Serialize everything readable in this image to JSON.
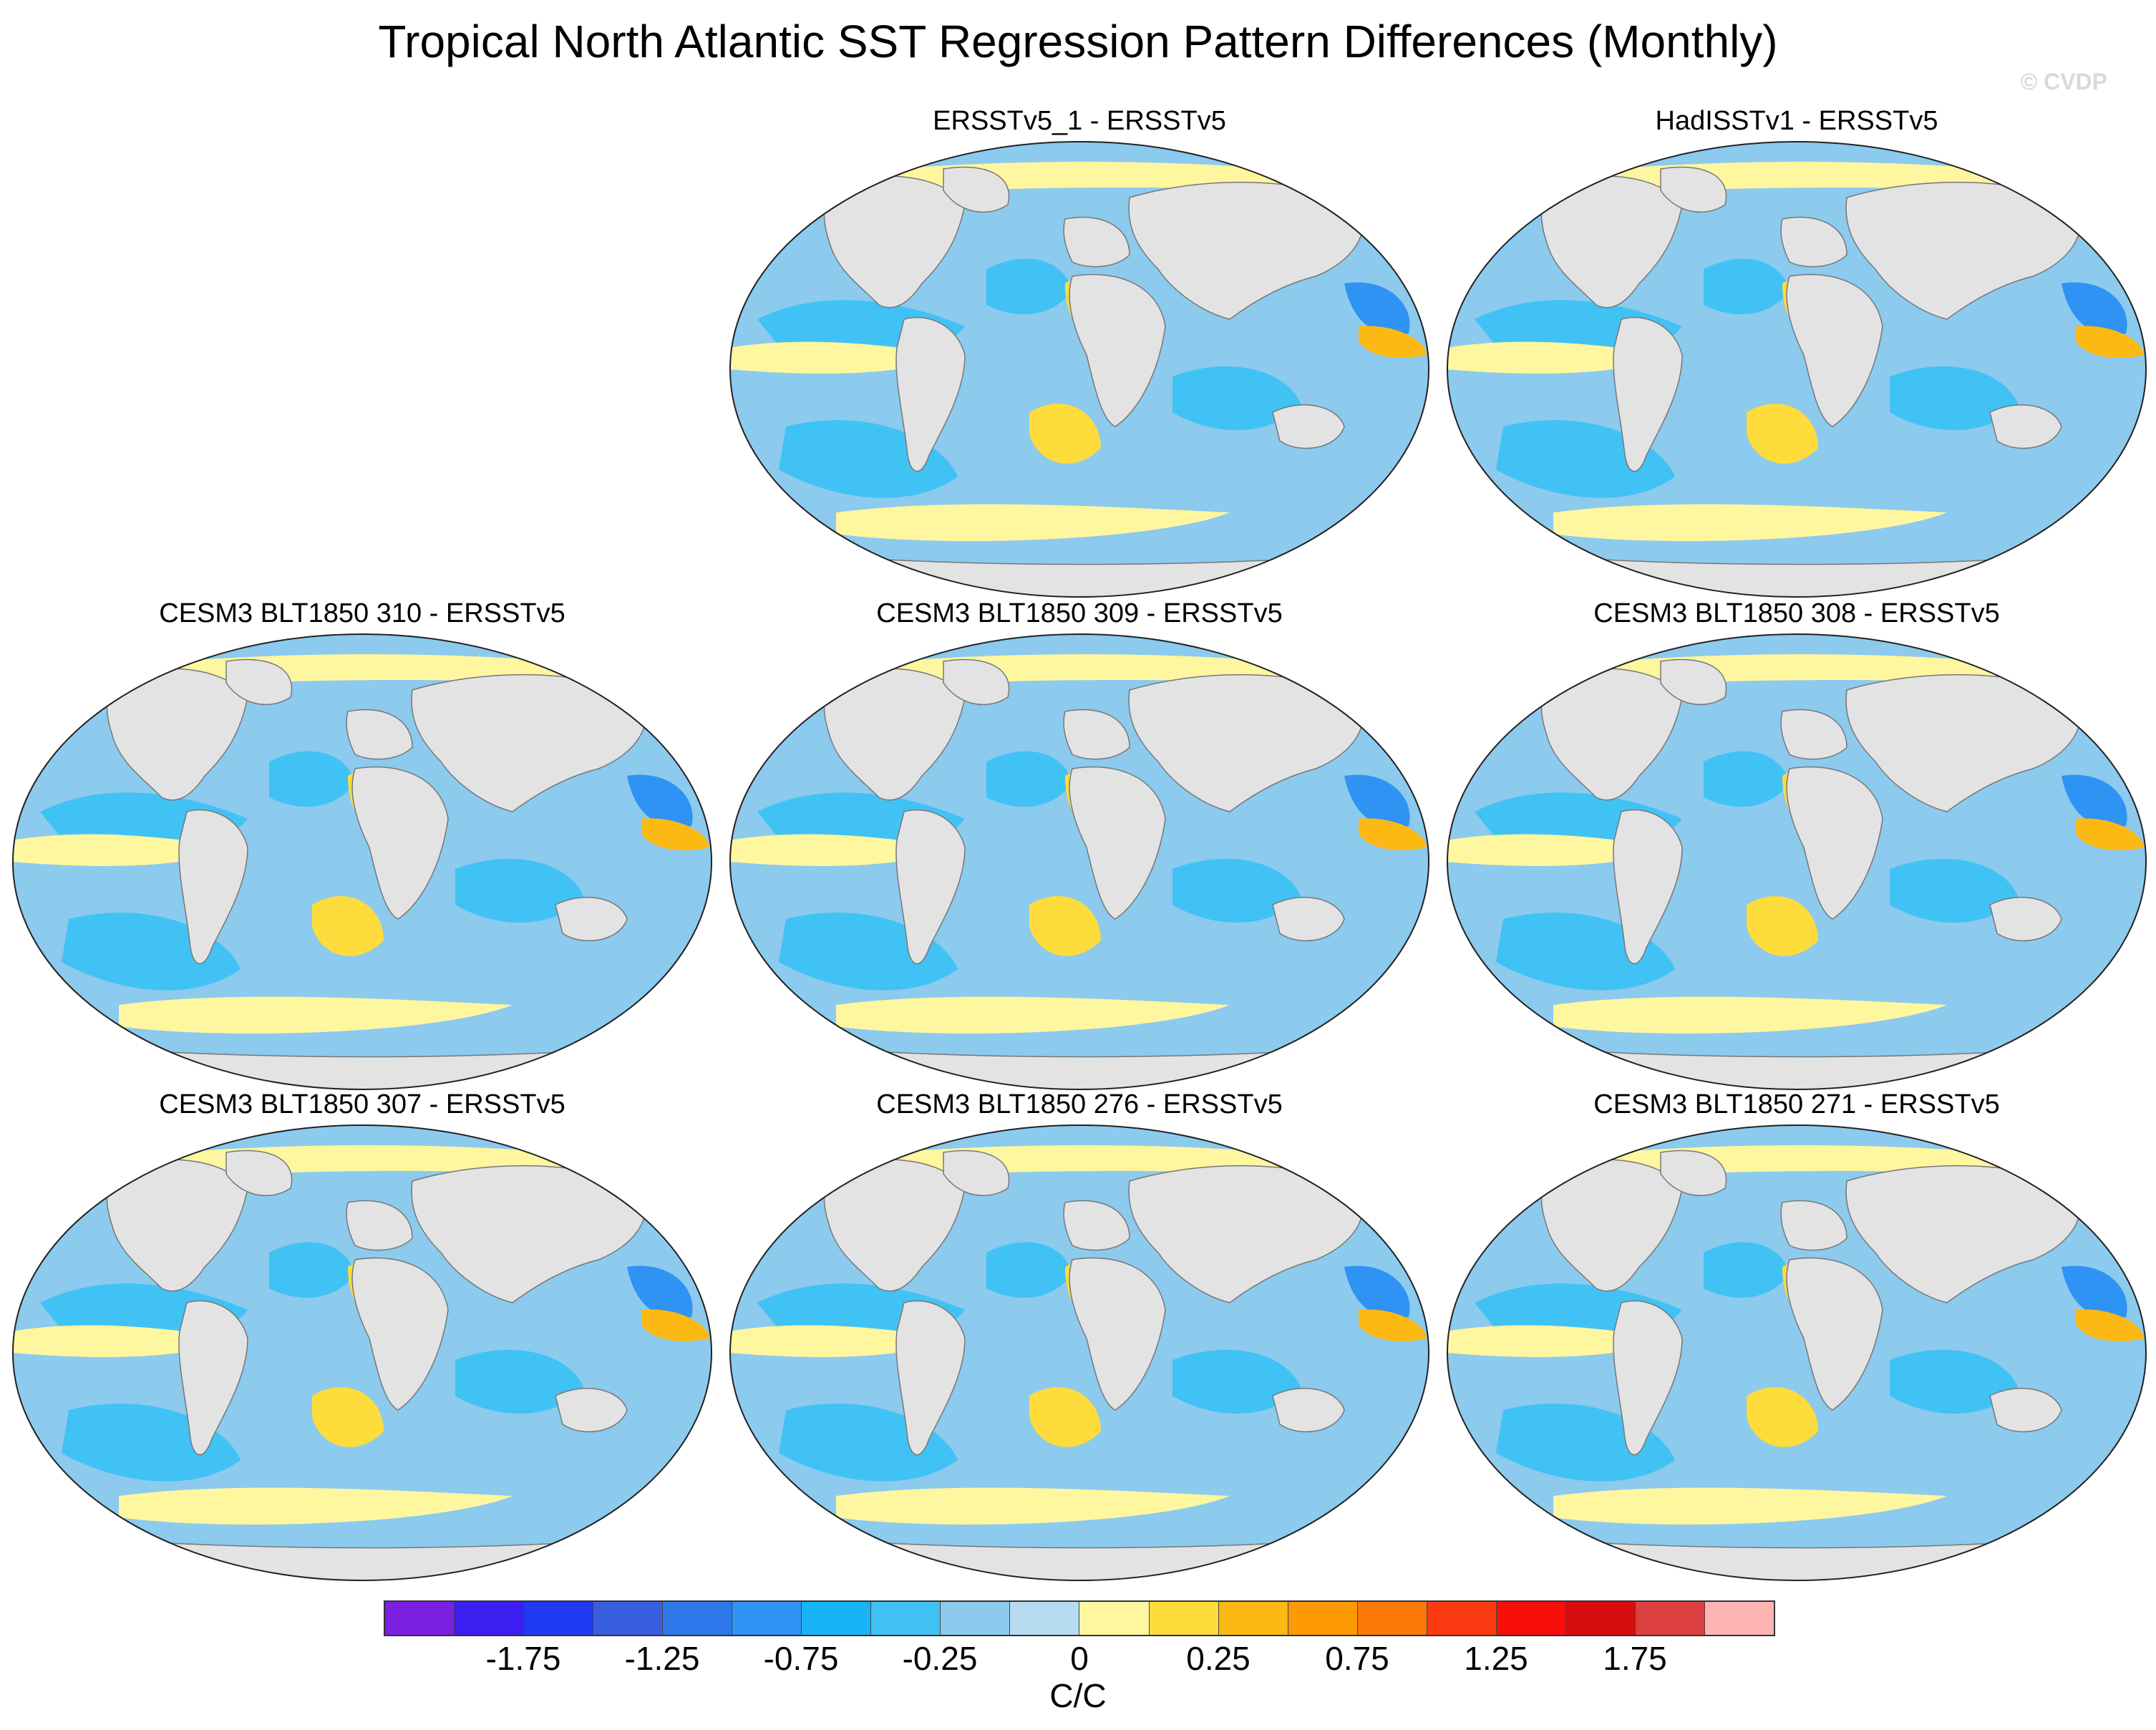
{
  "figure": {
    "title": "Tropical North Atlantic SST Regression Pattern Differences (Monthly)",
    "credit": "© CVDP"
  },
  "panels": [
    {
      "title": "ERSSTv5_1 - ERSSTv5"
    },
    {
      "title": "HadISSTv1 - ERSSTv5"
    },
    {
      "title": "CESM3 BLT1850 310 - ERSSTv5"
    },
    {
      "title": "CESM3 BLT1850 309 - ERSSTv5"
    },
    {
      "title": "CESM3 BLT1850 308 - ERSSTv5"
    },
    {
      "title": "CESM3 BLT1850 307 - ERSSTv5"
    },
    {
      "title": "CESM3 BLT1850 276 - ERSSTv5"
    },
    {
      "title": "CESM3 BLT1850 271 - ERSSTv5"
    }
  ],
  "colorbar": {
    "units": "C/C",
    "tick_labels": [
      "-1.75",
      "-1.25",
      "-0.75",
      "-0.25",
      "0",
      "0.25",
      "0.75",
      "1.25",
      "1.75"
    ],
    "colors": [
      "#7b1fe0",
      "#3a1ff0",
      "#1f3af0",
      "#3a5ee0",
      "#2f78ec",
      "#2e93f2",
      "#19b4f7",
      "#41c2f5",
      "#8ccaee",
      "#b7dcf2",
      "#fff6a0",
      "#fddc3c",
      "#fcb914",
      "#fc9904",
      "#fc7a08",
      "#fc3b12",
      "#f80e0a",
      "#d80d0d",
      "#dc4040",
      "#ffb4b4"
    ]
  }
}
